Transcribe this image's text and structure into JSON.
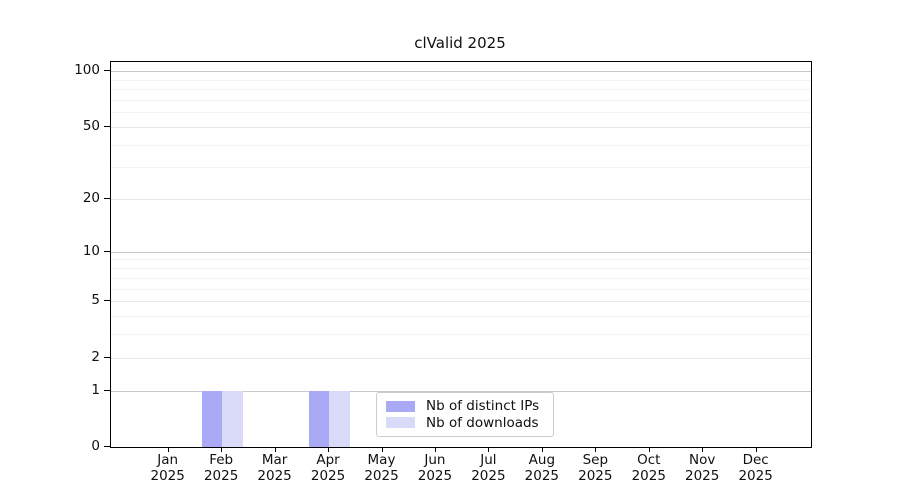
{
  "chart_data": {
    "type": "bar",
    "title": "clValid 2025",
    "categories": [
      {
        "month": "Jan",
        "year": "2025"
      },
      {
        "month": "Feb",
        "year": "2025"
      },
      {
        "month": "Mar",
        "year": "2025"
      },
      {
        "month": "Apr",
        "year": "2025"
      },
      {
        "month": "May",
        "year": "2025"
      },
      {
        "month": "Jun",
        "year": "2025"
      },
      {
        "month": "Jul",
        "year": "2025"
      },
      {
        "month": "Aug",
        "year": "2025"
      },
      {
        "month": "Sep",
        "year": "2025"
      },
      {
        "month": "Oct",
        "year": "2025"
      },
      {
        "month": "Nov",
        "year": "2025"
      },
      {
        "month": "Dec",
        "year": "2025"
      }
    ],
    "series": [
      {
        "name": "Nb of distinct IPs",
        "color": "#a9a9f5",
        "values": [
          0,
          1,
          0,
          1,
          0,
          0,
          0,
          0,
          0,
          0,
          0,
          0
        ]
      },
      {
        "name": "Nb of downloads",
        "color": "#d9d9f8",
        "values": [
          0,
          1,
          0,
          1,
          0,
          0,
          0,
          0,
          0,
          0,
          0,
          0
        ]
      }
    ],
    "y_axis": {
      "scale": "log1p",
      "ticks": [
        0,
        1,
        2,
        5,
        10,
        20,
        50,
        100
      ],
      "decade_ticks": [
        1,
        10,
        100
      ],
      "mid_ticks": [
        2,
        5,
        20,
        50
      ],
      "minor_ticks": [
        3,
        4,
        6,
        7,
        8,
        9,
        30,
        40,
        60,
        70,
        80,
        90
      ],
      "ylim": [
        0,
        112
      ]
    },
    "xlabel": "",
    "ylabel": "",
    "grid": true,
    "legend_position": "bottom-center"
  }
}
